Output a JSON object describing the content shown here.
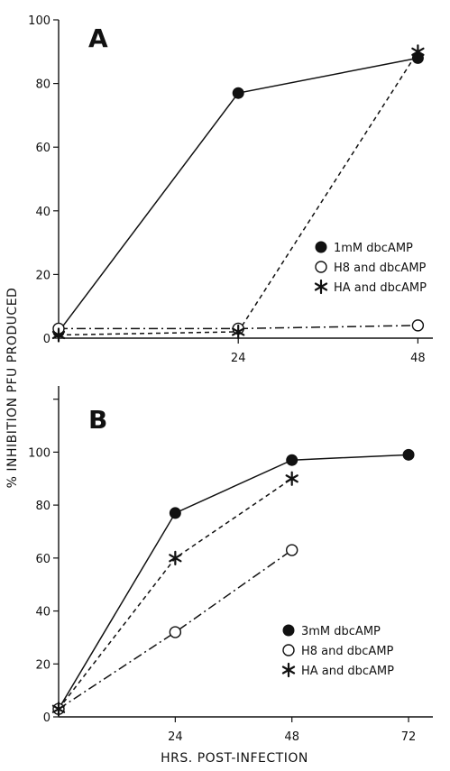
{
  "figure": {
    "ylabel": "% INHIBITION PFU PRODUCED",
    "xlabel": "HRS. POST-INFECTION"
  },
  "chart_data": [
    {
      "type": "line",
      "panel": "A",
      "xlim": [
        0,
        50
      ],
      "ylim": [
        0,
        100
      ],
      "xticks": [
        24,
        48
      ],
      "yticks": [
        0,
        20,
        40,
        60,
        80,
        100
      ],
      "ytick_labels": [
        "0",
        "20",
        "40",
        "60",
        "80",
        "100"
      ],
      "legend_position": "right-middle",
      "series": [
        {
          "name": "1mM dbcAMP",
          "marker": "filled-circle",
          "dash": "solid",
          "x": [
            0,
            24,
            48
          ],
          "y": [
            2,
            77,
            88
          ]
        },
        {
          "name": "H8 and dbcAMP",
          "marker": "open-circle",
          "dash": "dash-dot",
          "x": [
            0,
            24,
            48
          ],
          "y": [
            3,
            3,
            4
          ]
        },
        {
          "name": "HA and dbcAMP",
          "marker": "asterisk",
          "dash": "dashed",
          "x": [
            0,
            24,
            48
          ],
          "y": [
            1,
            2,
            90
          ]
        }
      ]
    },
    {
      "type": "line",
      "panel": "B",
      "xlim": [
        0,
        77
      ],
      "ylim": [
        0,
        125
      ],
      "xticks": [
        24,
        48,
        72
      ],
      "yticks": [
        0,
        20,
        40,
        60,
        80,
        100
      ],
      "ytick_labels": [
        "0",
        "20",
        "40",
        "60",
        "80",
        "100"
      ],
      "legend_position": "right-lower",
      "series": [
        {
          "name": "3mM dbcAMP",
          "marker": "filled-circle",
          "dash": "solid",
          "x": [
            0,
            24,
            48,
            72
          ],
          "y": [
            3,
            77,
            97,
            99
          ]
        },
        {
          "name": "H8 and dbcAMP",
          "marker": "open-circle",
          "dash": "dash-dot",
          "x": [
            0,
            24,
            48
          ],
          "y": [
            3,
            32,
            63
          ]
        },
        {
          "name": "HA and dbcAMP",
          "marker": "asterisk",
          "dash": "dashed",
          "x": [
            0,
            24,
            48
          ],
          "y": [
            3,
            60,
            90
          ]
        }
      ]
    }
  ]
}
